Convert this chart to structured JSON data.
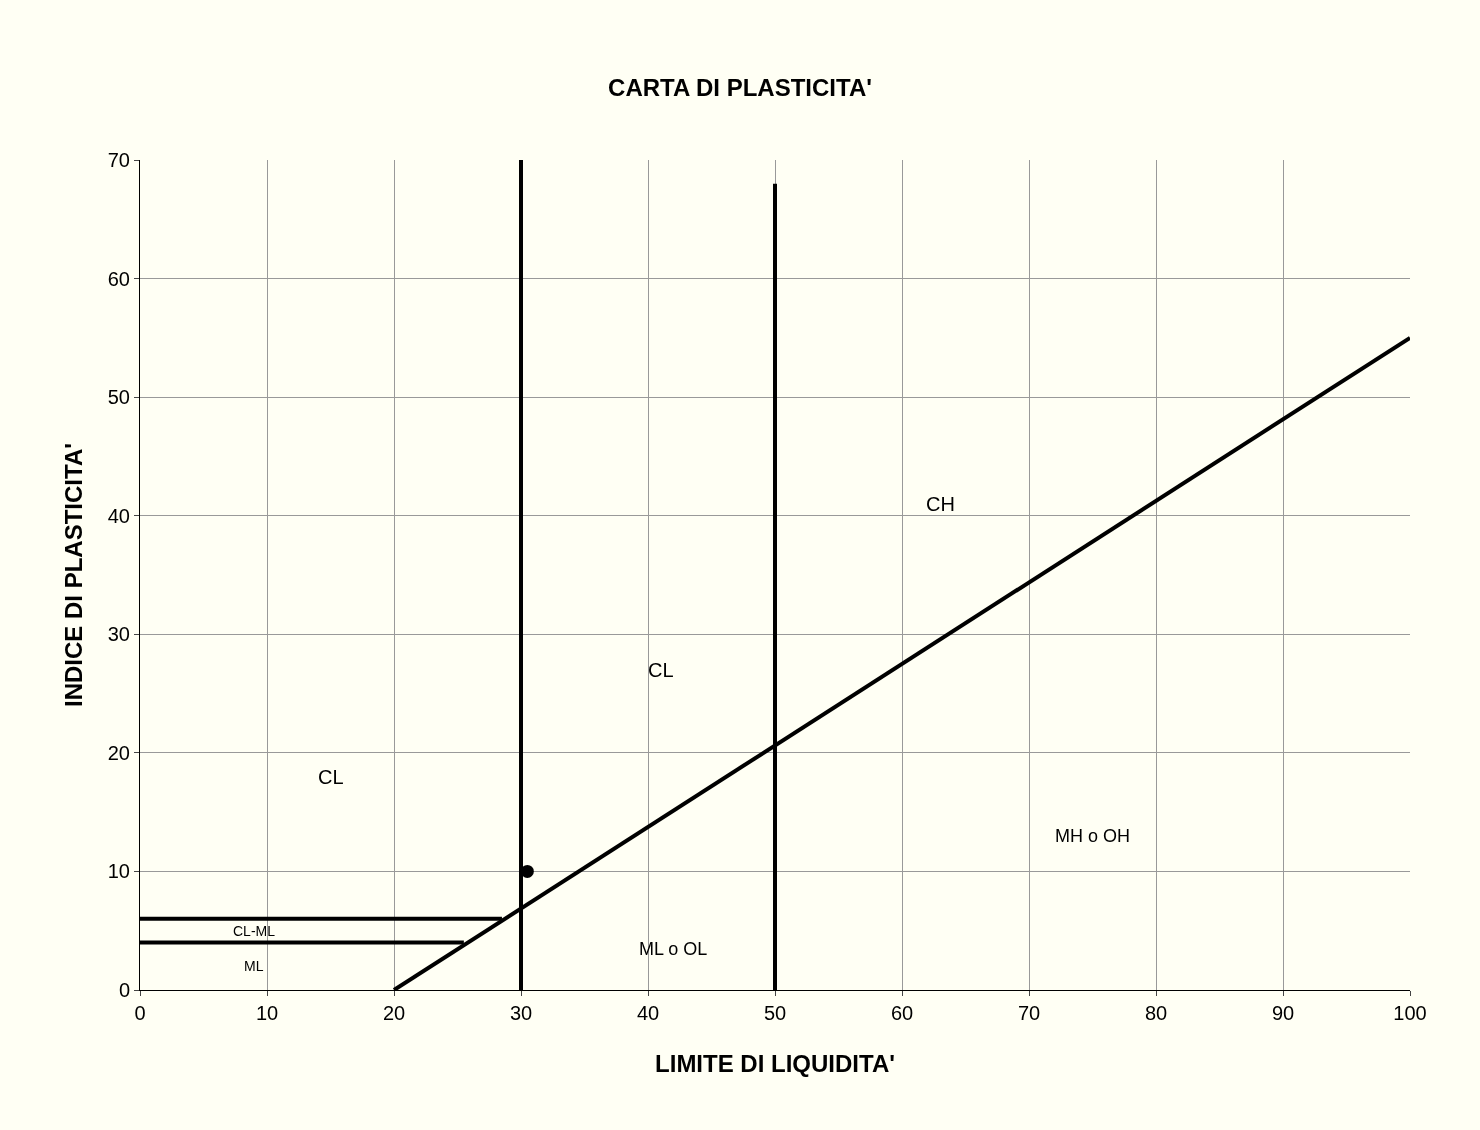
{
  "chart_data": {
    "type": "line",
    "title": "CARTA DI PLASTICITA'",
    "xlabel": "LIMITE DI LIQUIDITA'",
    "ylabel": "INDICE DI PLASTICITA'",
    "xlim": [
      0,
      100
    ],
    "ylim": [
      0,
      70
    ],
    "xticks": [
      0,
      10,
      20,
      30,
      40,
      50,
      60,
      70,
      80,
      90,
      100
    ],
    "yticks": [
      0,
      10,
      20,
      30,
      40,
      50,
      60,
      70
    ],
    "grid": true,
    "marker": "none",
    "line_style": "solid",
    "series": [
      {
        "color": "#000000",
        "x": [
          20,
          100
        ],
        "values": [
          0,
          55
        ]
      },
      {
        "color": "#000000",
        "x": [
          30,
          30
        ],
        "values": [
          0,
          70
        ]
      },
      {
        "color": "#000000",
        "x": [
          50,
          50
        ],
        "values": [
          0,
          68
        ]
      },
      {
        "color": "#000000",
        "x": [
          0,
          28.5
        ],
        "values": [
          6,
          6
        ]
      },
      {
        "color": "#000000",
        "x": [
          0,
          25.5
        ],
        "values": [
          4,
          4
        ]
      },
      {
        "type": "scatter",
        "marker": "circle",
        "color": "#000000",
        "x": [
          30.5
        ],
        "values": [
          10
        ]
      }
    ],
    "annotations": [
      "CL",
      "CL",
      "CH",
      "MH o OH",
      "ML o OL",
      "CL-ML",
      "ML"
    ]
  }
}
